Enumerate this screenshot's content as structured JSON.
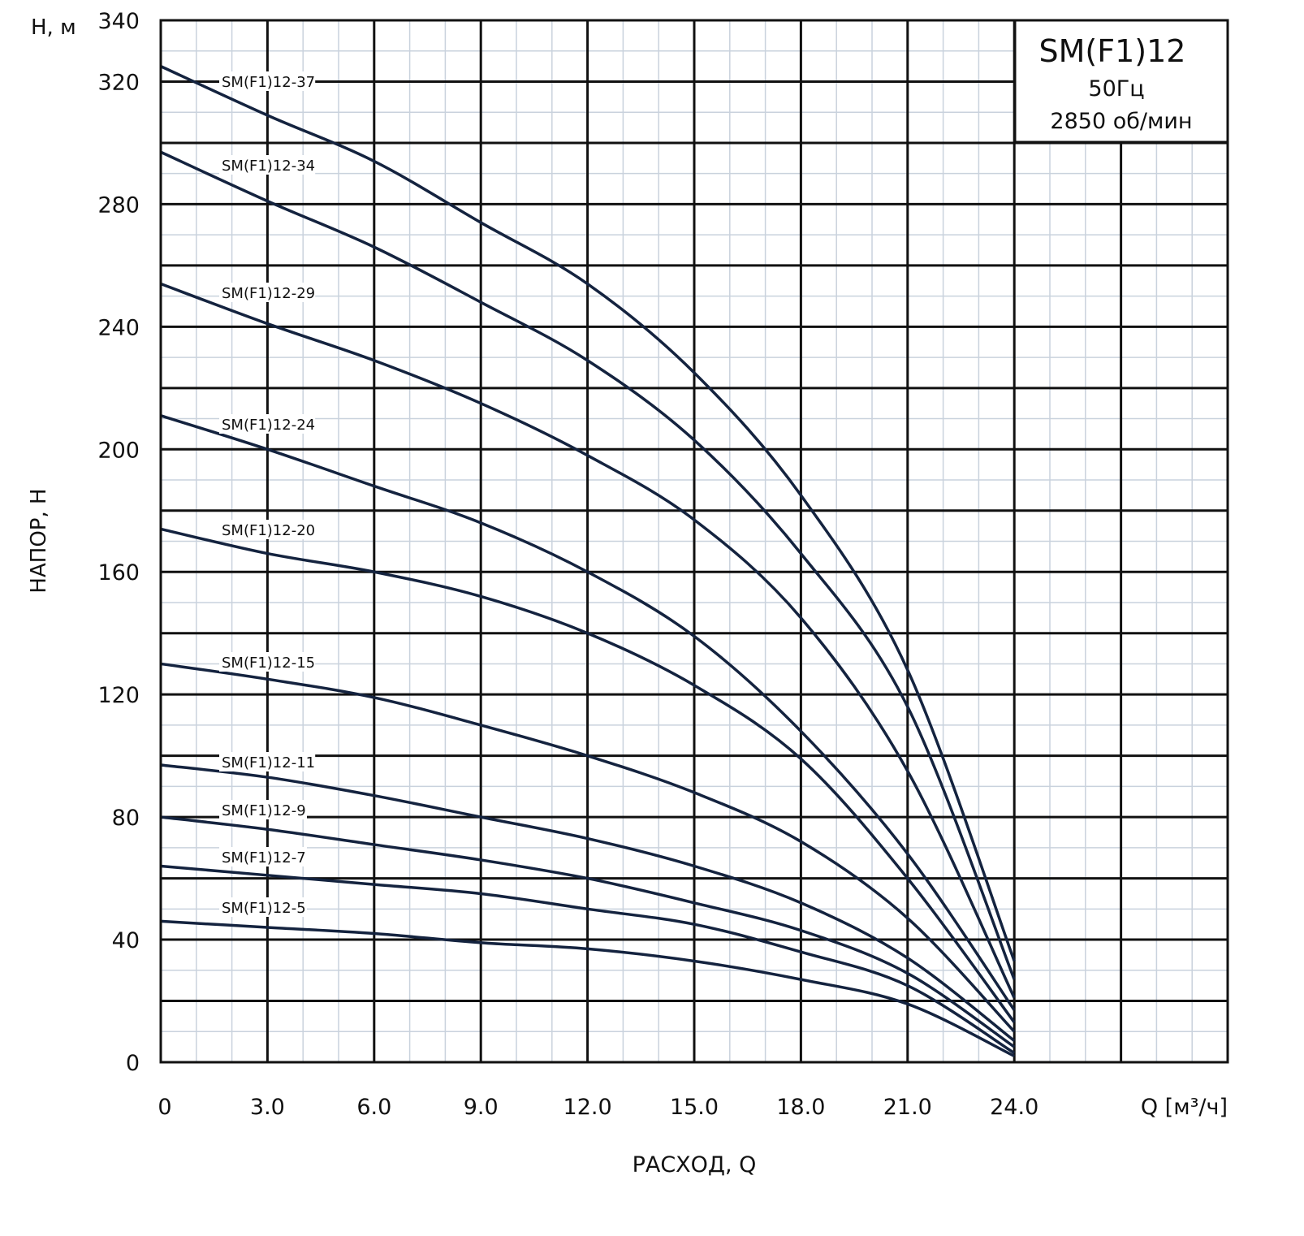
{
  "chart_data": {
    "type": "line",
    "title": "SM(F1)12",
    "subtitle_lines": [
      "50Гц",
      "2850 об/мин"
    ],
    "xlabel": "РАСХОД, Q",
    "x_unit_label": "Q [м³/ч]",
    "ylabel": "НАПОР, H",
    "y_unit_label": "H, м",
    "xlim": [
      0,
      30
    ],
    "ylim": [
      0,
      340
    ],
    "x_ticks": [
      "0",
      "3.0",
      "6.0",
      "9.0",
      "12.0",
      "15.0",
      "18.0",
      "21.0",
      "24.0"
    ],
    "x_tick_values": [
      0,
      3,
      6,
      9,
      12,
      15,
      18,
      21,
      24
    ],
    "y_ticks": [
      "0",
      "40",
      "80",
      "120",
      "160",
      "200",
      "240",
      "280",
      "320",
      "340"
    ],
    "y_tick_values": [
      0,
      40,
      80,
      120,
      160,
      200,
      240,
      280,
      320,
      340
    ],
    "grid": true,
    "line_color": "#14233f",
    "x": [
      0,
      3,
      6,
      9,
      12,
      15,
      18,
      21,
      24
    ],
    "series": [
      {
        "name": "SM(F1)12-37",
        "values": [
          325,
          309,
          294,
          274,
          254,
          225,
          185,
          128,
          33
        ]
      },
      {
        "name": "SM(F1)12-34",
        "values": [
          297,
          281,
          266,
          248,
          229,
          203,
          166,
          116,
          27
        ]
      },
      {
        "name": "SM(F1)12-29",
        "values": [
          254,
          241,
          229,
          215,
          198,
          177,
          145,
          95,
          21
        ]
      },
      {
        "name": "SM(F1)12-24",
        "values": [
          211,
          200,
          188,
          176,
          160,
          139,
          108,
          68,
          17
        ]
      },
      {
        "name": "SM(F1)12-20",
        "values": [
          174,
          166,
          160,
          152,
          140,
          123,
          99,
          60,
          13
        ]
      },
      {
        "name": "SM(F1)12-15",
        "values": [
          130,
          125,
          119,
          110,
          100,
          88,
          72,
          47,
          10
        ]
      },
      {
        "name": "SM(F1)12-11",
        "values": [
          97,
          93,
          87,
          80,
          73,
          64,
          52,
          34,
          7
        ]
      },
      {
        "name": "SM(F1)12-9",
        "values": [
          80,
          76,
          71,
          66,
          60,
          52,
          43,
          29,
          5
        ]
      },
      {
        "name": "SM(F1)12-7",
        "values": [
          64,
          61,
          58,
          55,
          50,
          45,
          36,
          25,
          3
        ]
      },
      {
        "name": "SM(F1)12-5",
        "values": [
          46,
          44,
          42,
          39,
          37,
          33,
          27,
          19,
          2
        ]
      }
    ]
  }
}
